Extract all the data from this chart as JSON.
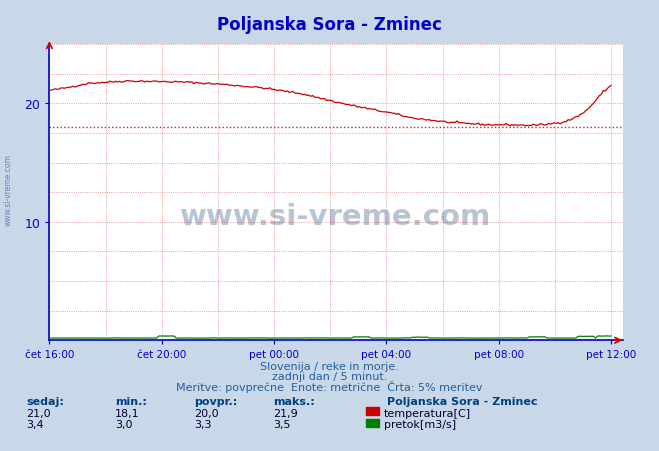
{
  "title": "Poljanska Sora - Zminec",
  "title_color": "#0000cc",
  "bg_color": "#c8d8e8",
  "plot_bg_color": "#ffffff",
  "grid_color": "#e08080",
  "axis_color": "#0000cc",
  "xlabel_ticks": [
    "čet 16:00",
    "čet 20:00",
    "pet 00:00",
    "pet 04:00",
    "pet 08:00",
    "pet 12:00"
  ],
  "tick_positions": [
    0,
    96,
    192,
    288,
    384,
    480
  ],
  "total_points": 289,
  "ylim": [
    0,
    25
  ],
  "ytick_vals": [
    10,
    20
  ],
  "temp_color": "#cc0000",
  "flow_color": "#008000",
  "avg_temp": 20.0,
  "avg_line_color": "#cc0000",
  "temp_min": 18.1,
  "temp_max": 21.9,
  "temp_current": 21.0,
  "flow_min": 3.0,
  "flow_max": 3.5,
  "flow_avg": 3.3,
  "flow_current": 3.4,
  "watermark": "www.si-vreme.com",
  "watermark_color": "#1a3a6a",
  "watermark_alpha": 0.3,
  "footer_line1": "Slovenija / reke in morje.",
  "footer_line2": "zadnji dan / 5 minut.",
  "footer_line3": "Meritve: povprečne  Enote: metrične  Črta: 5% meritev",
  "footer_color": "#2060a0",
  "legend_title": "Poljanska Sora - Zminec",
  "legend_title_color": "#004080",
  "sidebar_text": "www.si-vreme.com",
  "sidebar_color": "#4060a0",
  "col_headers": [
    "sedaj:",
    "min.:",
    "povpr.:",
    "maks.:"
  ],
  "temp_vals": [
    "21,0",
    "18,1",
    "20,0",
    "21,9"
  ],
  "flow_vals": [
    "3,4",
    "3,0",
    "3,3",
    "3,5"
  ],
  "temp_label": "temperatura[C]",
  "flow_label": "pretok[m3/s]"
}
